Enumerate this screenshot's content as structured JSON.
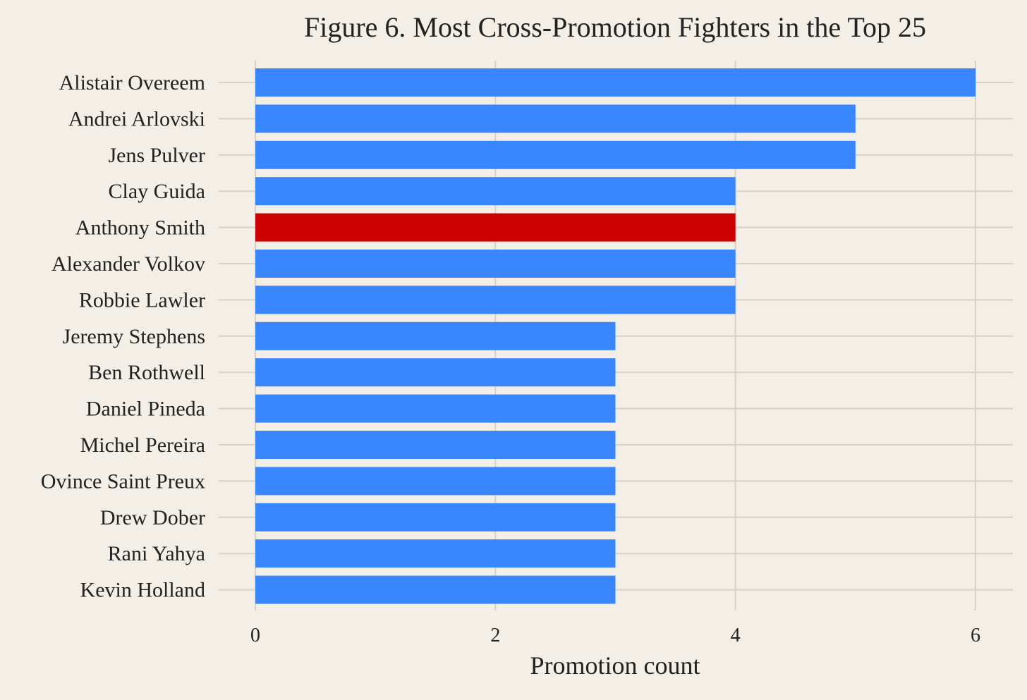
{
  "chart_data": {
    "type": "bar",
    "orientation": "horizontal",
    "title": "Figure 6. Most Cross-Promotion Fighters in the Top 25",
    "xlabel": "Promotion count",
    "ylabel": "",
    "categories": [
      "Alistair Overeem",
      "Andrei Arlovski",
      "Jens Pulver",
      "Clay Guida",
      "Anthony Smith",
      "Alexander Volkov",
      "Robbie Lawler",
      "Jeremy Stephens",
      "Ben Rothwell",
      "Daniel Pineda",
      "Michel Pereira",
      "Ovince Saint Preux",
      "Drew Dober",
      "Rani Yahya",
      "Kevin Holland"
    ],
    "values": [
      6,
      5,
      5,
      4,
      4,
      4,
      4,
      3,
      3,
      3,
      3,
      3,
      3,
      3,
      3
    ],
    "highlight": "Anthony Smith",
    "xlim": [
      0,
      6
    ],
    "xticks": [
      "0",
      "2",
      "4",
      "6"
    ],
    "grid": true,
    "legend": "none",
    "colors": {
      "background": "#f3efe7",
      "bar": "#3a86ff",
      "highlight_bar": "#cc0000",
      "grid": "#d9d2c2",
      "text": "#222222"
    }
  }
}
